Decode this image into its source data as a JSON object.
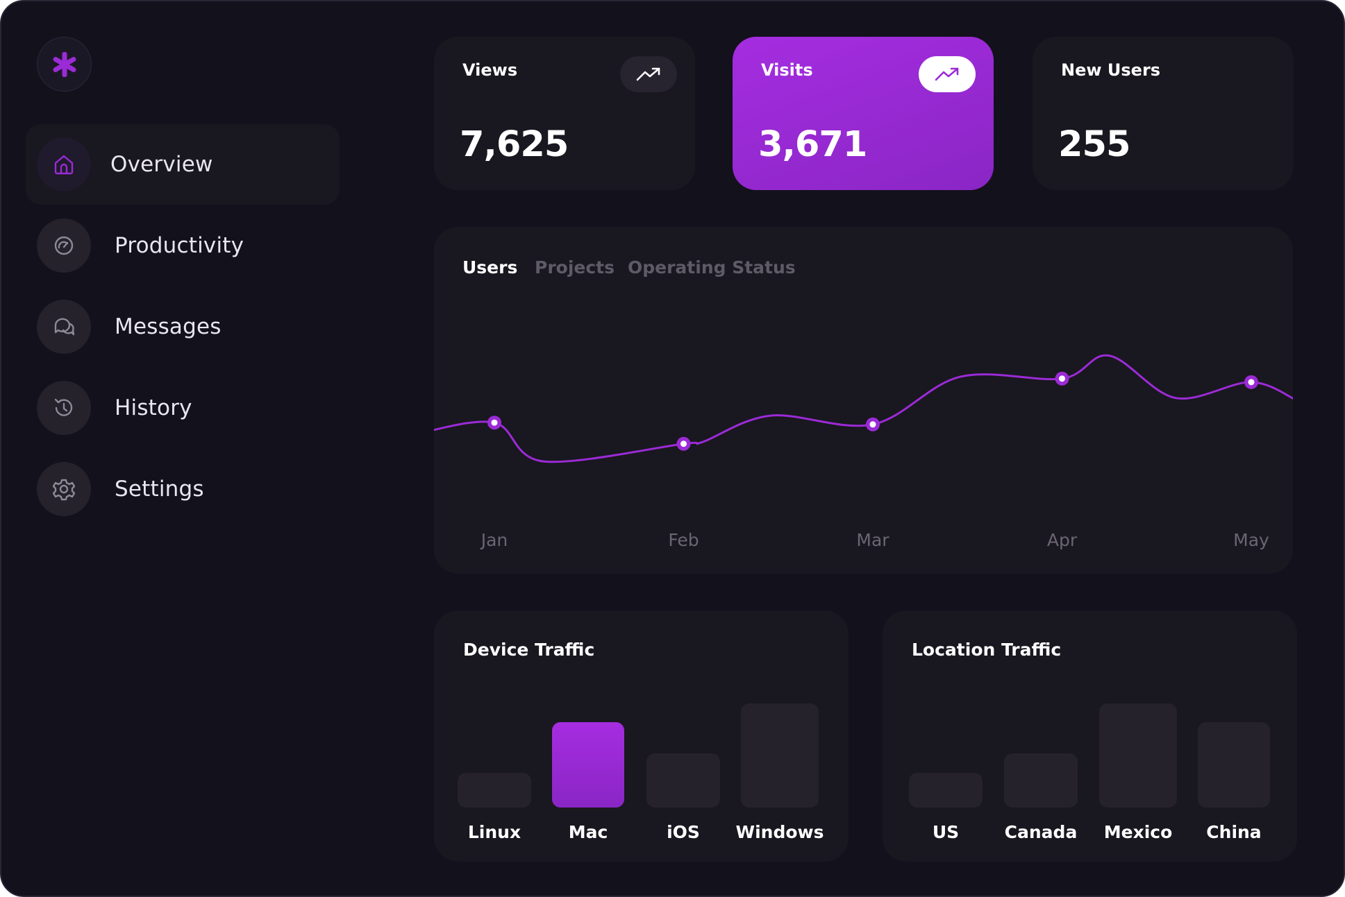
{
  "brand": {
    "accent": "#9b2bd6",
    "icon": "asterisk-icon"
  },
  "sidebar": {
    "items": [
      {
        "label": "Overview",
        "icon": "home-icon",
        "active": true
      },
      {
        "label": "Productivity",
        "icon": "speedometer-icon",
        "active": false
      },
      {
        "label": "Messages",
        "icon": "chat-icon",
        "active": false
      },
      {
        "label": "History",
        "icon": "history-icon",
        "active": false
      },
      {
        "label": "Settings",
        "icon": "gear-icon",
        "active": false
      }
    ]
  },
  "stats": [
    {
      "title": "Views",
      "value": "7,625",
      "trend_icon": "trend-up-icon",
      "highlighted": false
    },
    {
      "title": "Visits",
      "value": "3,671",
      "trend_icon": "trend-up-icon",
      "highlighted": true
    },
    {
      "title": "New Users",
      "value": "255",
      "highlighted": false
    }
  ],
  "main_chart": {
    "tabs": [
      "Users",
      "Projects",
      "Operating Status"
    ],
    "active_tab": "Users"
  },
  "chart_data": {
    "type": "line",
    "title": "Users",
    "x_range": [
      -0.4,
      4.25
    ],
    "ylim": [
      0,
      100
    ],
    "categories": [
      "Jan",
      "Feb",
      "Mar",
      "Apr",
      "May"
    ],
    "points": [
      {
        "x": -0.4,
        "y": 38
      },
      {
        "x": 0.0,
        "y": 44
      },
      {
        "x": 0.26,
        "y": 22
      },
      {
        "x": 1.0,
        "y": 32
      },
      {
        "x": 1.1,
        "y": 33
      },
      {
        "x": 1.46,
        "y": 48
      },
      {
        "x": 2.0,
        "y": 43
      },
      {
        "x": 2.46,
        "y": 70
      },
      {
        "x": 3.0,
        "y": 69
      },
      {
        "x": 3.25,
        "y": 82
      },
      {
        "x": 3.6,
        "y": 58
      },
      {
        "x": 4.0,
        "y": 67
      },
      {
        "x": 4.25,
        "y": 56
      }
    ],
    "markers": [
      {
        "x": 0.0,
        "y": 44
      },
      {
        "x": 1.0,
        "y": 32
      },
      {
        "x": 2.0,
        "y": 43
      },
      {
        "x": 3.0,
        "y": 69
      },
      {
        "x": 4.0,
        "y": 67
      }
    ]
  },
  "device_traffic": {
    "title": "Device Traffic",
    "chart_data": {
      "type": "bar",
      "categories": [
        "Linux",
        "Mac",
        "iOS",
        "Windows"
      ],
      "values": [
        33,
        82,
        52,
        100
      ],
      "highlighted": "Mac",
      "ylim": [
        0,
        100
      ]
    }
  },
  "location_traffic": {
    "title": "Location Traffic",
    "chart_data": {
      "type": "bar",
      "categories": [
        "US",
        "Canada",
        "Mexico",
        "China"
      ],
      "values": [
        33,
        52,
        100,
        82
      ],
      "highlighted": null,
      "ylim": [
        0,
        100
      ]
    }
  }
}
